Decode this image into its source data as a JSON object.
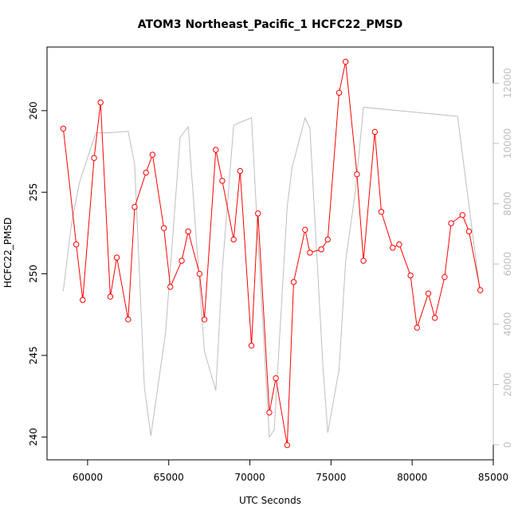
{
  "chart_data": {
    "type": "line",
    "title": "ATOM3 Northeast_Pacific_1 HCFC22_PMSD",
    "xlabel": "UTC Seconds",
    "ylabel": "HCFC22_PMSD",
    "xlim": [
      57500,
      85000
    ],
    "ylim": [
      238.6,
      263.9
    ],
    "y2lim": [
      -500,
      13200
    ],
    "x_ticks": [
      60000,
      65000,
      70000,
      75000,
      80000,
      85000
    ],
    "y_ticks": [
      240,
      245,
      250,
      255,
      260
    ],
    "y2_ticks": [
      0,
      2000,
      4000,
      6000,
      8000,
      10000,
      12000
    ],
    "grid": false,
    "series": [
      {
        "color": "#ff0000",
        "marker": "open-circle",
        "axis": "left",
        "x": [
          58500,
          59300,
          59700,
          60400,
          60800,
          61400,
          61800,
          62500,
          62900,
          63600,
          64000,
          64700,
          65100,
          65800,
          66200,
          66900,
          67200,
          67900,
          68300,
          69000,
          69400,
          70100,
          70500,
          71200,
          71600,
          72300,
          72700,
          73400,
          73700,
          74400,
          74800,
          75500,
          75900,
          76600,
          77000,
          77700,
          78100,
          78800,
          79200,
          79900,
          80300,
          81000,
          81400,
          82000,
          82400,
          83100,
          83500,
          84200
        ],
        "y": [
          258.9,
          251.8,
          248.4,
          257.1,
          260.5,
          248.6,
          251.0,
          247.2,
          254.1,
          256.2,
          257.3,
          252.8,
          249.2,
          250.8,
          252.6,
          250.0,
          247.2,
          257.6,
          255.7,
          252.1,
          256.3,
          245.6,
          253.7,
          241.5,
          243.6,
          239.5,
          249.5,
          252.7,
          251.3,
          251.5,
          252.1,
          261.1,
          263.0,
          256.1,
          250.8,
          258.7,
          253.8,
          251.6,
          251.8,
          249.9,
          246.7,
          248.8,
          247.3,
          249.8,
          253.1,
          253.6,
          252.6,
          249.0
        ]
      },
      {
        "color": "#bebebe",
        "marker": "none",
        "axis": "right",
        "x": [
          58500,
          59000,
          59500,
          60500,
          61200,
          62500,
          62900,
          63500,
          63900,
          64800,
          65700,
          66200,
          67200,
          67900,
          68300,
          69000,
          69400,
          70100,
          70500,
          71200,
          71500,
          72300,
          72600,
          73400,
          73700,
          74500,
          74800,
          75500,
          75900,
          76500,
          77000,
          82800,
          84200
        ],
        "y": [
          5100,
          7300,
          8700,
          10350,
          10350,
          10400,
          9300,
          1900,
          300,
          3700,
          10200,
          10550,
          3100,
          1800,
          5800,
          10600,
          10700,
          10850,
          6800,
          250,
          500,
          7900,
          9200,
          10850,
          10500,
          2600,
          400,
          2500,
          6100,
          8400,
          11200,
          10900,
          5000
        ]
      }
    ]
  }
}
